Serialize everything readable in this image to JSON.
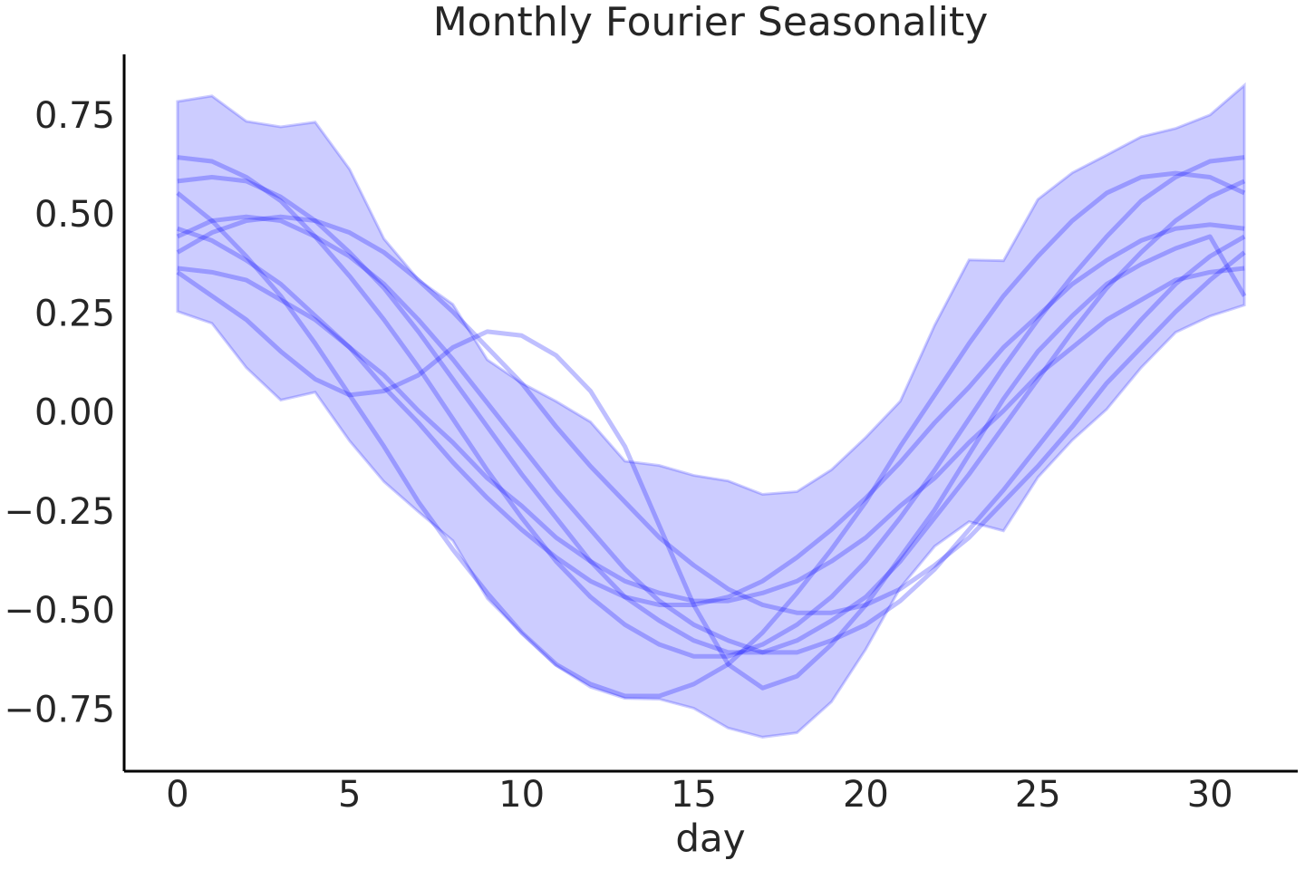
{
  "chart_data": {
    "type": "line",
    "title": "Monthly Fourier Seasonality",
    "xlabel": "day",
    "x": [
      0,
      1,
      2,
      3,
      4,
      5,
      6,
      7,
      8,
      9,
      10,
      11,
      12,
      13,
      14,
      15,
      16,
      17,
      18,
      19,
      20,
      21,
      22,
      23,
      24,
      25,
      26,
      27,
      28,
      29,
      30,
      31
    ],
    "xlim": [
      -1.55,
      32.55
    ],
    "ylim": [
      -0.9,
      0.91
    ],
    "xticks": [
      0,
      5,
      10,
      15,
      20,
      25,
      30
    ],
    "yticks": [
      {
        "value": -0.75,
        "label": "−0.75"
      },
      {
        "value": -0.5,
        "label": "−0.50"
      },
      {
        "value": -0.25,
        "label": "−0.25"
      },
      {
        "value": 0,
        "label": "0.00"
      },
      0.25,
      {
        "value": 0.5,
        "label": "0.50"
      },
      0.75
    ],
    "grid": false,
    "band": {
      "color": "#0000ff",
      "upper": [
        0.791,
        0.805,
        0.741,
        0.727,
        0.739,
        0.62,
        0.444,
        0.341,
        0.279,
        0.139,
        0.08,
        0.034,
        -0.018,
        -0.117,
        -0.128,
        -0.153,
        -0.167,
        -0.201,
        -0.194,
        -0.139,
        -0.057,
        0.034,
        0.226,
        0.391,
        0.389,
        0.544,
        0.611,
        0.656,
        0.702,
        0.723,
        0.757,
        0.832
      ],
      "lower": [
        0.261,
        0.231,
        0.119,
        0.037,
        0.057,
        -0.066,
        -0.169,
        -0.245,
        -0.318,
        -0.464,
        -0.551,
        -0.633,
        -0.688,
        -0.716,
        -0.718,
        -0.741,
        -0.791,
        -0.814,
        -0.803,
        -0.725,
        -0.592,
        -0.437,
        -0.332,
        -0.27,
        -0.293,
        -0.158,
        -0.064,
        0.014,
        0.119,
        0.208,
        0.249,
        0.277
      ]
    },
    "series": [
      {
        "color": "#0000ff",
        "values": [
          0.65,
          0.64,
          0.6,
          0.54,
          0.45,
          0.35,
          0.24,
          0.12,
          -0.01,
          -0.14,
          -0.26,
          -0.37,
          -0.46,
          -0.53,
          -0.58,
          -0.61,
          -0.61,
          -0.58,
          -0.53,
          -0.46,
          -0.37,
          -0.26,
          -0.14,
          -0.01,
          0.12,
          0.24,
          0.35,
          0.45,
          0.54,
          0.6,
          0.64,
          0.65
        ]
      },
      {
        "color": "#0000ff",
        "values": [
          0.59,
          0.6,
          0.59,
          0.55,
          0.49,
          0.41,
          0.32,
          0.21,
          0.09,
          -0.03,
          -0.15,
          -0.26,
          -0.37,
          -0.46,
          -0.52,
          -0.57,
          -0.6,
          -0.6,
          -0.57,
          -0.52,
          -0.46,
          -0.37,
          -0.26,
          -0.15,
          -0.03,
          0.09,
          0.21,
          0.32,
          0.41,
          0.49,
          0.55,
          0.59
        ]
      },
      {
        "color": "#0000ff",
        "values": [
          0.45,
          0.49,
          0.5,
          0.49,
          0.45,
          0.4,
          0.33,
          0.24,
          0.14,
          0.03,
          -0.08,
          -0.19,
          -0.29,
          -0.39,
          -0.47,
          -0.53,
          -0.57,
          -0.6,
          -0.6,
          -0.57,
          -0.53,
          -0.47,
          -0.39,
          -0.29,
          -0.19,
          -0.08,
          0.03,
          0.14,
          0.24,
          0.33,
          0.4,
          0.45
        ]
      },
      {
        "color": "#0000ff",
        "values": [
          0.47,
          0.44,
          0.39,
          0.33,
          0.25,
          0.17,
          0.07,
          -0.02,
          -0.12,
          -0.21,
          -0.29,
          -0.36,
          -0.42,
          -0.46,
          -0.48,
          -0.48,
          -0.46,
          -0.42,
          -0.36,
          -0.29,
          -0.21,
          -0.12,
          -0.02,
          0.07,
          0.17,
          0.25,
          0.33,
          0.39,
          0.44,
          0.47,
          0.48,
          0.47
        ]
      },
      {
        "color": "#0000ff",
        "values": [
          0.37,
          0.36,
          0.34,
          0.29,
          0.24,
          0.17,
          0.1,
          0.01,
          -0.07,
          -0.16,
          -0.23,
          -0.31,
          -0.37,
          -0.42,
          -0.45,
          -0.47,
          -0.47,
          -0.45,
          -0.42,
          -0.37,
          -0.31,
          -0.23,
          -0.16,
          -0.07,
          0.01,
          0.1,
          0.17,
          0.24,
          0.29,
          0.34,
          0.36,
          0.37
        ]
      },
      {
        "color": "#0000ff",
        "values": [
          0.36,
          0.3,
          0.24,
          0.16,
          0.09,
          0.05,
          0.06,
          0.1,
          0.17,
          0.21,
          0.2,
          0.15,
          0.06,
          -0.08,
          -0.28,
          -0.48,
          -0.63,
          -0.69,
          -0.66,
          -0.58,
          -0.48,
          -0.36,
          -0.24,
          -0.1,
          0.04,
          0.16,
          0.25,
          0.33,
          0.38,
          0.42,
          0.45,
          0.3
        ]
      },
      {
        "color": "#0000ff",
        "values": [
          0.41,
          0.46,
          0.49,
          0.5,
          0.49,
          0.46,
          0.41,
          0.34,
          0.26,
          0.17,
          0.08,
          -0.03,
          -0.13,
          -0.22,
          -0.31,
          -0.38,
          -0.44,
          -0.48,
          -0.5,
          -0.5,
          -0.48,
          -0.44,
          -0.38,
          -0.31,
          -0.22,
          -0.13,
          -0.03,
          0.08,
          0.17,
          0.26,
          0.34,
          0.41
        ]
      },
      {
        "color": "#0000ff",
        "values": [
          0.56,
          0.49,
          0.4,
          0.3,
          0.18,
          0.05,
          -0.08,
          -0.22,
          -0.34,
          -0.45,
          -0.55,
          -0.63,
          -0.68,
          -0.71,
          -0.71,
          -0.68,
          -0.63,
          -0.55,
          -0.45,
          -0.34,
          -0.22,
          -0.08,
          0.05,
          0.18,
          0.3,
          0.4,
          0.49,
          0.56,
          0.6,
          0.61,
          0.6,
          0.56
        ]
      }
    ]
  }
}
